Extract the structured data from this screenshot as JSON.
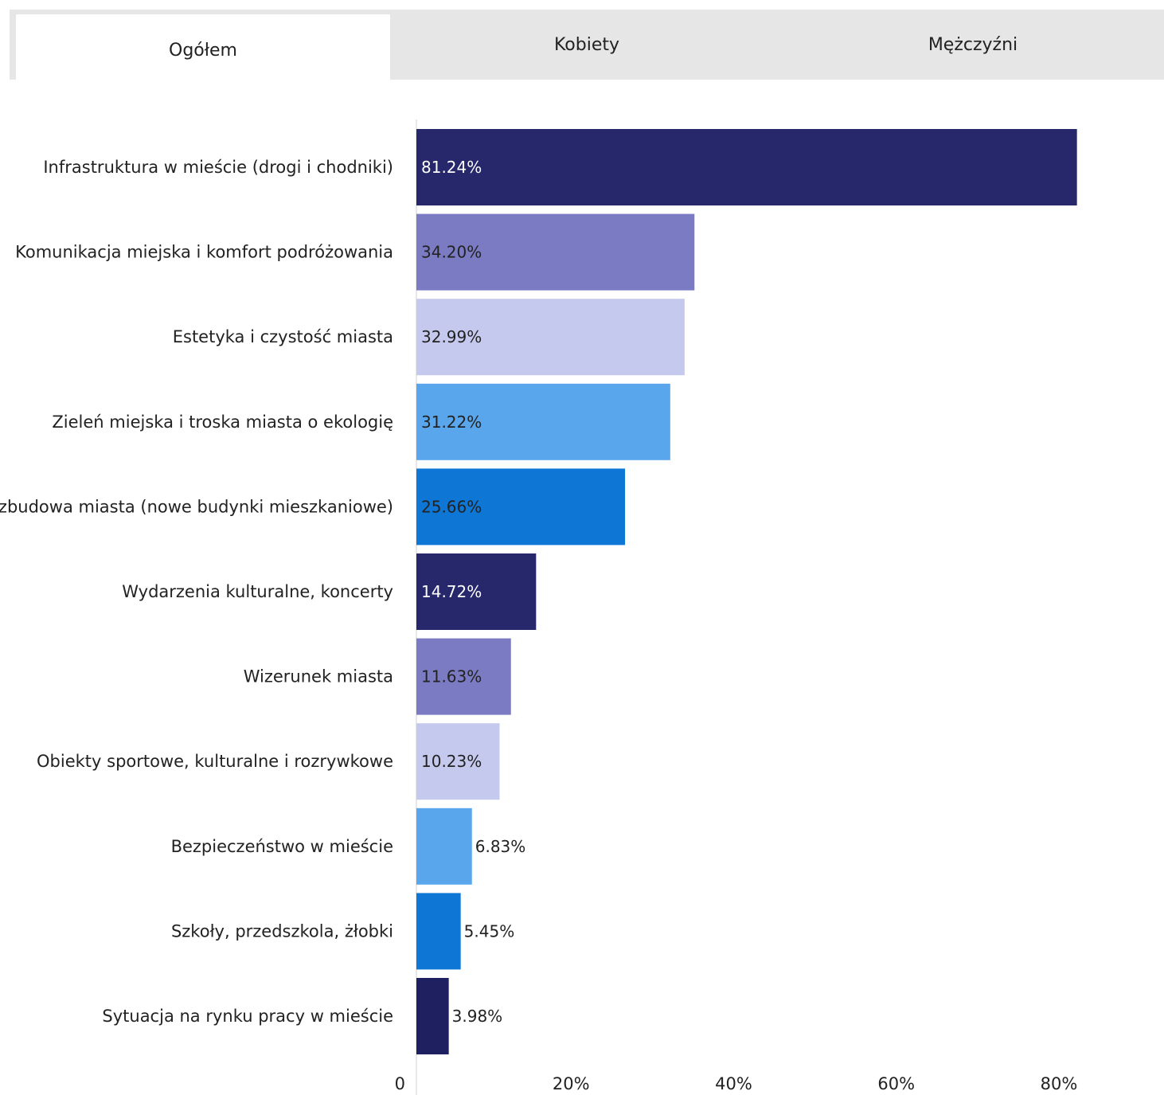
{
  "tabs": [
    {
      "label": "Ogółem",
      "active": true
    },
    {
      "label": "Kobiety",
      "active": false
    },
    {
      "label": "Mężczyźni",
      "active": false
    }
  ],
  "chart_data": {
    "type": "bar",
    "orientation": "horizontal",
    "categories": [
      "Infrastruktura w mieście (drogi i chodniki)",
      "Komunikacja miejska i komfort podróżowania",
      "Estetyka i czystość miasta",
      "Zieleń miejska i troska miasta o ekologię",
      "Rozbudowa miasta (nowe budynki mieszkaniowe)",
      "Wydarzenia kulturalne, koncerty",
      "Wizerunek miasta",
      "Obiekty sportowe, kulturalne i rozrywkowe",
      "Bezpieczeństwo w mieście",
      "Szkoły, przedszkola, żłobki",
      "Sytuacja na rynku pracy w mieście"
    ],
    "values": [
      81.24,
      34.2,
      32.99,
      31.22,
      25.66,
      14.72,
      11.63,
      10.23,
      6.83,
      5.45,
      3.98
    ],
    "value_labels": [
      "81.24%",
      "34.20%",
      "32.99%",
      "31.22%",
      "25.66%",
      "14.72%",
      "11.63%",
      "10.23%",
      "6.83%",
      "5.45%",
      "3.98%"
    ],
    "bar_colors": [
      "#26286b",
      "#7b7bc4",
      "#c5c9ee",
      "#5aa6ec",
      "#0e77d6",
      "#26286b",
      "#7b7bc4",
      "#c5c9ee",
      "#5aa6ec",
      "#0e77d6",
      "#1e2060"
    ],
    "label_colors": [
      "#ffffff",
      "#222222",
      "#222222",
      "#222222",
      "#222222",
      "#ffffff",
      "#222222",
      "#222222",
      "#222222",
      "#222222",
      "#222222"
    ],
    "xticks": [
      0,
      20,
      40,
      60,
      80
    ],
    "xtick_labels": [
      "0",
      "20%",
      "40%",
      "60%",
      "80%"
    ],
    "xlim": [
      0,
      80
    ],
    "grid": false
  }
}
